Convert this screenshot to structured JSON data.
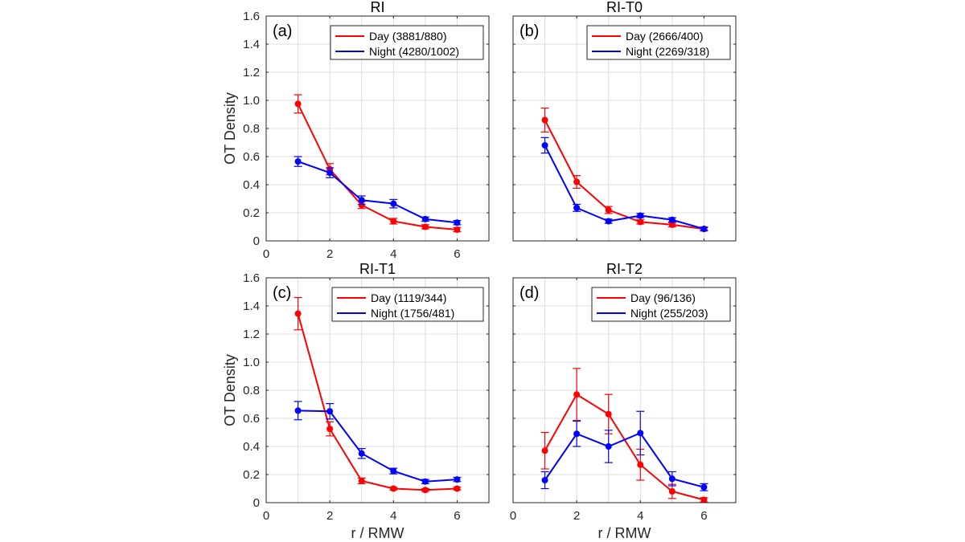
{
  "figure": {
    "ylabel": "OT Density",
    "xlabel": "r / RMW",
    "colors": {
      "day": "#ff0000",
      "night": "#0000ff",
      "grid": "#dcdcdc",
      "axis": "#262626"
    }
  },
  "chart_data": [
    {
      "type": "line",
      "title": "RI",
      "panel_label": "(a)",
      "xlabel": "",
      "ylabel": "OT Density",
      "xlim": [
        0,
        7
      ],
      "ylim": [
        0,
        1.6
      ],
      "xticks": [
        "0",
        "2",
        "4",
        "6"
      ],
      "yticks": [
        "0",
        "0.2",
        "0.4",
        "0.6",
        "0.8",
        "1.0",
        "1.2",
        "1.4",
        "1.6"
      ],
      "grid": true,
      "legend_position": "top-right",
      "series": [
        {
          "name": "Day (3881/880)",
          "color": "#ff0000",
          "x": [
            1,
            2,
            3,
            4,
            5,
            6
          ],
          "values": [
            0.975,
            0.51,
            0.255,
            0.14,
            0.1,
            0.08
          ],
          "err": [
            0.065,
            0.04,
            0.025,
            0.02,
            0.015,
            0.015
          ]
        },
        {
          "name": "Night (4280/1002)",
          "color": "#0000ff",
          "x": [
            1,
            2,
            3,
            4,
            5,
            6
          ],
          "values": [
            0.565,
            0.485,
            0.29,
            0.265,
            0.155,
            0.13
          ],
          "err": [
            0.035,
            0.035,
            0.03,
            0.03,
            0.015,
            0.015
          ]
        }
      ]
    },
    {
      "type": "line",
      "title": "RI-T0",
      "panel_label": "(b)",
      "xlabel": "",
      "ylabel": "",
      "xlim": [
        0,
        7
      ],
      "ylim": [
        0,
        1.6
      ],
      "xticks": [],
      "yticks": [],
      "grid": true,
      "legend_position": "top-right",
      "series": [
        {
          "name": "Day (2666/400)",
          "color": "#ff0000",
          "x": [
            1,
            2,
            3,
            4,
            5,
            6
          ],
          "values": [
            0.86,
            0.42,
            0.22,
            0.135,
            0.115,
            0.085
          ],
          "err": [
            0.085,
            0.045,
            0.025,
            0.015,
            0.015,
            0.015
          ]
        },
        {
          "name": "Night (2269/318)",
          "color": "#0000ff",
          "x": [
            1,
            2,
            3,
            4,
            5,
            6
          ],
          "values": [
            0.68,
            0.235,
            0.14,
            0.18,
            0.15,
            0.085
          ],
          "err": [
            0.055,
            0.025,
            0.015,
            0.015,
            0.015,
            0.01
          ]
        }
      ]
    },
    {
      "type": "line",
      "title": "RI-T1",
      "panel_label": "(c)",
      "xlabel": "r / RMW",
      "ylabel": "OT Density",
      "xlim": [
        0,
        7
      ],
      "ylim": [
        0,
        1.6
      ],
      "xticks": [
        "0",
        "2",
        "4",
        "6"
      ],
      "yticks": [
        "0",
        "0.2",
        "0.4",
        "0.6",
        "0.8",
        "1.0",
        "1.2",
        "1.4",
        "1.6"
      ],
      "grid": true,
      "legend_position": "top-right",
      "series": [
        {
          "name": "Day (1119/344)",
          "color": "#ff0000",
          "x": [
            1,
            2,
            3,
            4,
            5,
            6
          ],
          "values": [
            1.345,
            0.525,
            0.155,
            0.1,
            0.09,
            0.1
          ],
          "err": [
            0.115,
            0.05,
            0.02,
            0.01,
            0.01,
            0.01
          ]
        },
        {
          "name": "Night (1756/481)",
          "color": "#0000ff",
          "x": [
            1,
            2,
            3,
            4,
            5,
            6
          ],
          "values": [
            0.655,
            0.65,
            0.35,
            0.225,
            0.15,
            0.165
          ],
          "err": [
            0.065,
            0.055,
            0.035,
            0.02,
            0.015,
            0.015
          ]
        }
      ]
    },
    {
      "type": "line",
      "title": "RI-T2",
      "panel_label": "(d)",
      "xlabel": "r / RMW",
      "ylabel": "",
      "xlim": [
        0,
        7
      ],
      "ylim": [
        0,
        1.6
      ],
      "xticks": [
        "0",
        "2",
        "4",
        "6"
      ],
      "yticks": [],
      "grid": true,
      "legend_position": "top-right",
      "series": [
        {
          "name": "Day (96/136)",
          "color": "#ff0000",
          "x": [
            1,
            2,
            3,
            4,
            5,
            6
          ],
          "values": [
            0.37,
            0.77,
            0.63,
            0.27,
            0.08,
            0.02
          ],
          "err": [
            0.13,
            0.185,
            0.14,
            0.11,
            0.05,
            0.015
          ]
        },
        {
          "name": "Night (255/203)",
          "color": "#0000ff",
          "x": [
            1,
            2,
            3,
            4,
            5,
            6
          ],
          "values": [
            0.16,
            0.49,
            0.4,
            0.495,
            0.17,
            0.11
          ],
          "err": [
            0.06,
            0.09,
            0.115,
            0.155,
            0.05,
            0.025
          ]
        }
      ]
    }
  ]
}
